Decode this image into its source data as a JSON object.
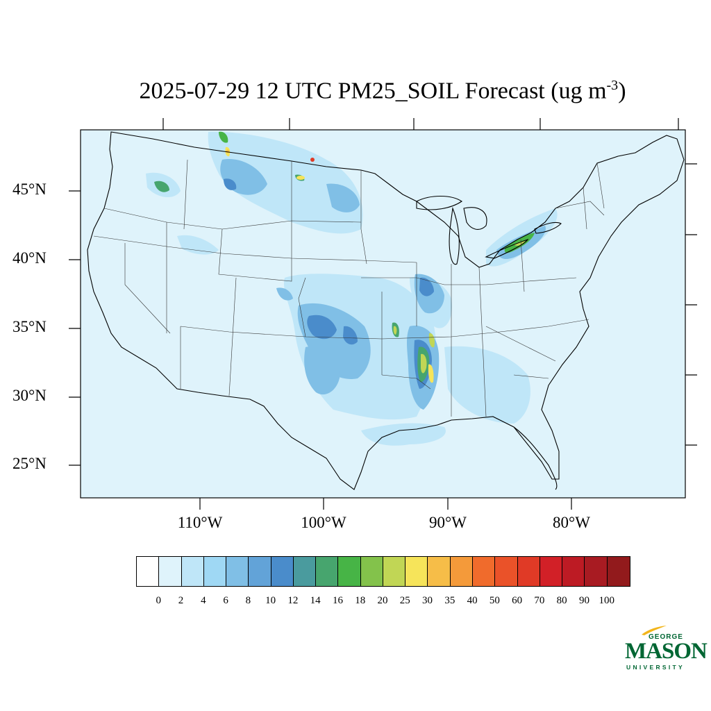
{
  "title": {
    "text": "2025-07-29 12 UTC PM25_SOIL Forecast (ug m",
    "superscript": "-3",
    "close": ")"
  },
  "map": {
    "region": "Contiguous United States",
    "background_color": "#dff3fb",
    "lat_labels": [
      "45°N",
      "40°N",
      "35°N",
      "30°N",
      "25°N"
    ],
    "lon_labels": [
      "110°W",
      "100°W",
      "90°W",
      "80°W"
    ]
  },
  "colorbar": {
    "colors": [
      "#ffffff",
      "#dff3fb",
      "#bfe6f8",
      "#9fd8f4",
      "#80bfe6",
      "#62a3d8",
      "#4a8ccb",
      "#4a9b9e",
      "#47a56e",
      "#47b446",
      "#83c24b",
      "#c1d655",
      "#f6e45a",
      "#f6bd48",
      "#f49a3a",
      "#f06b2c",
      "#ea5229",
      "#e03a26",
      "#d22027",
      "#bd1b24",
      "#a81b22",
      "#921a1c"
    ],
    "labels": [
      "0",
      "2",
      "4",
      "6",
      "8",
      "10",
      "12",
      "14",
      "16",
      "18",
      "20",
      "25",
      "30",
      "35",
      "40",
      "50",
      "60",
      "70",
      "80",
      "90",
      "100"
    ]
  },
  "logo": {
    "line1": "GEORGE",
    "line2": "MASON",
    "line3": "UNIVERSITY",
    "color": "#006633",
    "accent": "#f2b51b"
  }
}
